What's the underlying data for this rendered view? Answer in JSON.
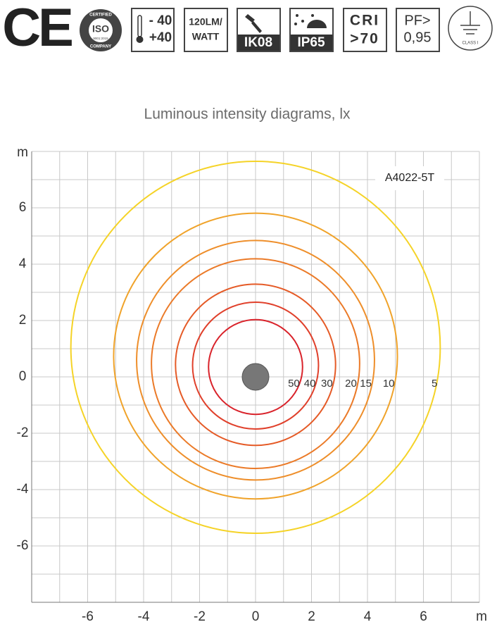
{
  "badges": {
    "ce": "CE",
    "iso": {
      "top": "CERTIFIED",
      "middle": "ISO",
      "standard": "9001:2015",
      "bottom": "COMPANY"
    },
    "temperature": [
      "- 40",
      "+40"
    ],
    "efficacy": [
      "120LM/",
      "WATT"
    ],
    "impact": "IK08",
    "ingress": "IP65",
    "cri": [
      "CRI",
      ">70"
    ],
    "pf": [
      "PF>",
      "0,95"
    ],
    "class": "CLASS I"
  },
  "chart_data": {
    "type": "isolux",
    "title": "Luminous intensity diagrams, lx",
    "model": "A4022-5T",
    "xlabel": "m",
    "ylabel": "m",
    "xlim": [
      -8,
      8
    ],
    "ylim": [
      -8,
      8
    ],
    "xticks": [
      -6,
      -4,
      -2,
      0,
      2,
      4,
      6
    ],
    "yticks": [
      -6,
      -4,
      -2,
      0,
      2,
      4,
      6
    ],
    "xgrid": [
      -8,
      -7,
      -6,
      -5,
      -4,
      -3,
      -2,
      -1,
      0,
      1,
      2,
      3,
      4,
      5,
      6,
      7,
      8
    ],
    "ygrid": [
      -8,
      -7,
      -6,
      -5,
      -4,
      -3,
      -2,
      -1,
      0,
      1,
      2,
      3,
      4,
      5,
      6,
      7,
      8
    ],
    "grid": true,
    "series": [
      {
        "name": "50",
        "color": "#d9232b",
        "cx": 0,
        "cy": 0.35,
        "r": 1.68
      },
      {
        "name": "40",
        "color": "#e0402b",
        "cx": 0,
        "cy": 0.4,
        "r": 2.25
      },
      {
        "name": "30",
        "color": "#e55a26",
        "cx": 0,
        "cy": 0.43,
        "r": 2.86
      },
      {
        "name": "20",
        "color": "#eb7a28",
        "cx": 0,
        "cy": 0.47,
        "r": 3.72
      },
      {
        "name": "15",
        "color": "#ee8e2a",
        "cx": 0,
        "cy": 0.59,
        "r": 4.25
      },
      {
        "name": "10",
        "color": "#f0a32a",
        "cx": 0,
        "cy": 0.74,
        "r": 5.07
      },
      {
        "name": "5",
        "color": "#f5d327",
        "cx": 0,
        "cy": 1.05,
        "r": 6.6
      }
    ]
  }
}
